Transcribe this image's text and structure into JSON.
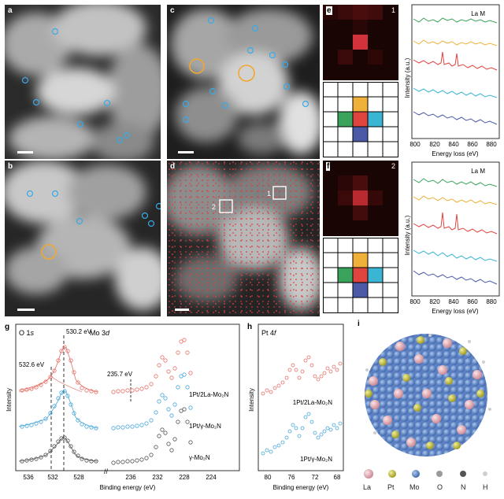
{
  "panels": {
    "a": "a",
    "b": "b",
    "c": "c",
    "d": "d",
    "e": "e",
    "f": "f",
    "g": "g",
    "h": "h",
    "i": "i"
  },
  "d_boxes": [
    "1",
    "2"
  ],
  "e_index": "1",
  "f_index": "2",
  "eels": {
    "label": "La M",
    "ylabel": "Intensity (a.u.)",
    "xlabel": "Energy loss (eV)",
    "xticks": [
      "800",
      "820",
      "840",
      "860",
      "880"
    ]
  },
  "g": {
    "o_label_main": "O 1",
    "o_label_sub": "s",
    "mo_label_main": "Mo 3",
    "mo_label_sub": "d",
    "ann_5302": "530.2 eV",
    "ann_5326": "532.6 eV",
    "ann_2357": "235.7 eV",
    "ylabel": "Intensity",
    "xlabel": "Binding energy (eV)",
    "xticks": [
      "536",
      "532",
      "528",
      "236",
      "232",
      "228",
      "224"
    ],
    "samples": [
      "1Pt/2La-Mo₂N",
      "1Pt/γ-Mo₂N",
      "γ-Mo₂N"
    ]
  },
  "h": {
    "title_main": "Pt 4",
    "title_sub": "f",
    "ylabel": "Intensity",
    "xlabel": "Binding energy (eV)",
    "xticks": [
      "80",
      "76",
      "72",
      "68"
    ],
    "samples": [
      "1Pt/2La-Mo₂N",
      "1Pt/γ-Mo₂N"
    ]
  },
  "legend": [
    "La",
    "Pt",
    "Mo",
    "O",
    "N",
    "H"
  ],
  "colors": {
    "green": "#3aa35b",
    "orange": "#f0b13b",
    "red": "#e0443e",
    "cyan": "#3ab6d4",
    "navy": "#4a5aa6",
    "grey": "#555555",
    "la": "#e9b4bd",
    "pt": "#c9c43a",
    "mo": "#4f7fc9",
    "o": "#9a9a9a",
    "n": "#555555",
    "h": "#cfcfcf",
    "highlight": "#f0a830",
    "atom": "#4aa8e0"
  }
}
